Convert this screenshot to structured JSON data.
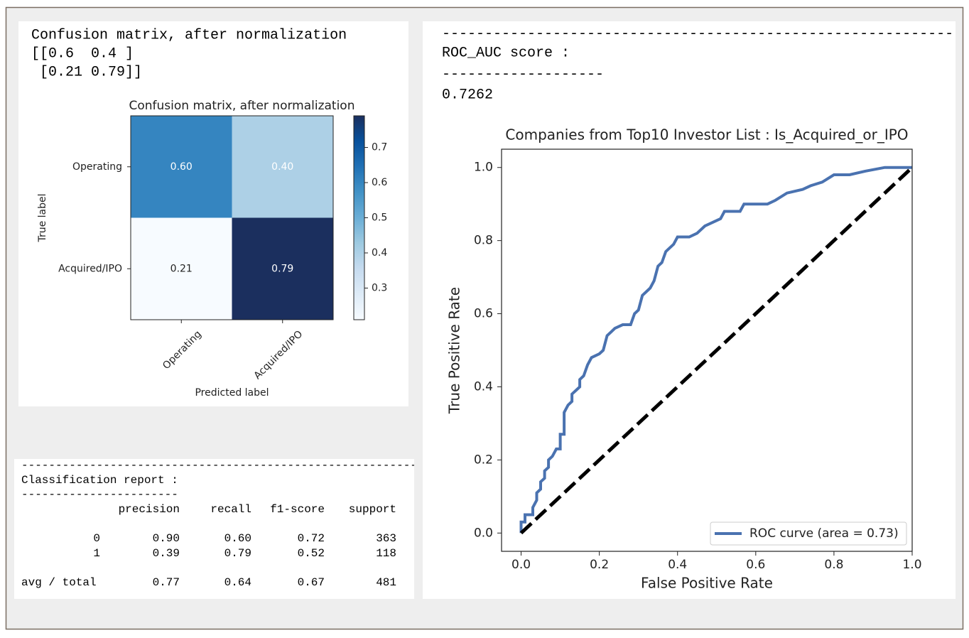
{
  "confusion_console": {
    "lines": [
      "Confusion matrix, after normalization",
      "[[0.6  0.4 ]",
      " [0.21 0.79]]"
    ]
  },
  "classification_report": {
    "rule": "------------------------------------------------------------",
    "heading": "Classification report :",
    "underline": "-----------------------",
    "columns": [
      "precision",
      "recall",
      "f1-score",
      "support"
    ],
    "rows": [
      {
        "label": "0",
        "cells": [
          "0.90",
          "0.60",
          "0.72",
          "363"
        ]
      },
      {
        "label": "1",
        "cells": [
          "0.39",
          "0.79",
          "0.52",
          "118"
        ]
      },
      {
        "label": "avg / total",
        "cells": [
          "0.77",
          "0.64",
          "0.67",
          "481"
        ]
      }
    ]
  },
  "roc_console": {
    "lines": [
      "------------------------------------------------------------",
      "ROC_AUC score :",
      "-------------------",
      "0.7262"
    ]
  },
  "chart_data": [
    {
      "type": "heatmap",
      "title": "Confusion matrix, after normalization",
      "x_label": "Predicted label",
      "y_label": "True label",
      "x_categories": [
        "Operating",
        "Acquired/IPO"
      ],
      "y_categories": [
        "Operating",
        "Acquired/IPO"
      ],
      "values": [
        [
          0.6,
          0.4
        ],
        [
          0.21,
          0.79
        ]
      ],
      "value_labels": [
        [
          "0.60",
          "0.40"
        ],
        [
          "0.21",
          "0.79"
        ]
      ],
      "clim": [
        0.21,
        0.79
      ],
      "cticks": [
        0.3,
        0.4,
        0.5,
        0.6,
        0.7
      ],
      "colormap": [
        "#f7fbff",
        "#deebf7",
        "#c6dbef",
        "#9ecae1",
        "#6baed6",
        "#4292c6",
        "#2171b5",
        "#08519c",
        "#1b2f5e"
      ]
    },
    {
      "type": "line",
      "title": "Companies from Top10 Investor List : Is_Acquired_or_IPO",
      "x_label": "False Positive Rate",
      "y_label": "True Positive Rate",
      "xlim": [
        -0.05,
        1.0
      ],
      "ylim": [
        -0.05,
        1.05
      ],
      "xticks": [
        {
          "value": 0,
          "label": "0.0"
        },
        0.2,
        0.4,
        0.6,
        0.8,
        {
          "value": 1,
          "label": "1.0"
        }
      ],
      "yticks": [
        {
          "value": 0,
          "label": "0.0"
        },
        0.2,
        0.4,
        0.6,
        0.8,
        {
          "value": 1,
          "label": "1.0"
        }
      ],
      "grid": false,
      "legend": "lower right",
      "series": [
        {
          "name": "ROC curve (area = 0.73)",
          "color": "#4a72b0",
          "linestyle": "solid",
          "x": [
            0,
            0,
            0.01,
            0.01,
            0.03,
            0.03,
            0.04,
            0.04,
            0.05,
            0.05,
            0.06,
            0.06,
            0.07,
            0.07,
            0.08,
            0.09,
            0.1,
            0.1,
            0.11,
            0.11,
            0.12,
            0.13,
            0.13,
            0.14,
            0.15,
            0.15,
            0.16,
            0.17,
            0.18,
            0.2,
            0.21,
            0.22,
            0.23,
            0.24,
            0.26,
            0.28,
            0.29,
            0.3,
            0.31,
            0.33,
            0.34,
            0.35,
            0.36,
            0.37,
            0.39,
            0.4,
            0.43,
            0.45,
            0.47,
            0.49,
            0.51,
            0.52,
            0.56,
            0.57,
            0.63,
            0.65,
            0.68,
            0.72,
            0.74,
            0.77,
            0.8,
            0.84,
            0.88,
            0.93,
            1
          ],
          "values": [
            0,
            0.03,
            0.03,
            0.05,
            0.05,
            0.07,
            0.09,
            0.11,
            0.12,
            0.14,
            0.15,
            0.17,
            0.18,
            0.2,
            0.21,
            0.23,
            0.23,
            0.27,
            0.27,
            0.33,
            0.35,
            0.36,
            0.38,
            0.39,
            0.4,
            0.42,
            0.43,
            0.46,
            0.48,
            0.49,
            0.5,
            0.54,
            0.55,
            0.56,
            0.57,
            0.57,
            0.6,
            0.61,
            0.65,
            0.67,
            0.69,
            0.73,
            0.74,
            0.77,
            0.79,
            0.81,
            0.81,
            0.82,
            0.84,
            0.85,
            0.86,
            0.88,
            0.88,
            0.9,
            0.9,
            0.91,
            0.93,
            0.94,
            0.95,
            0.96,
            0.98,
            0.98,
            0.99,
            1.0,
            1.0
          ]
        },
        {
          "color": "#000000",
          "linestyle": "dashed",
          "x": [
            0,
            1
          ],
          "values": [
            0,
            1
          ]
        }
      ]
    }
  ]
}
